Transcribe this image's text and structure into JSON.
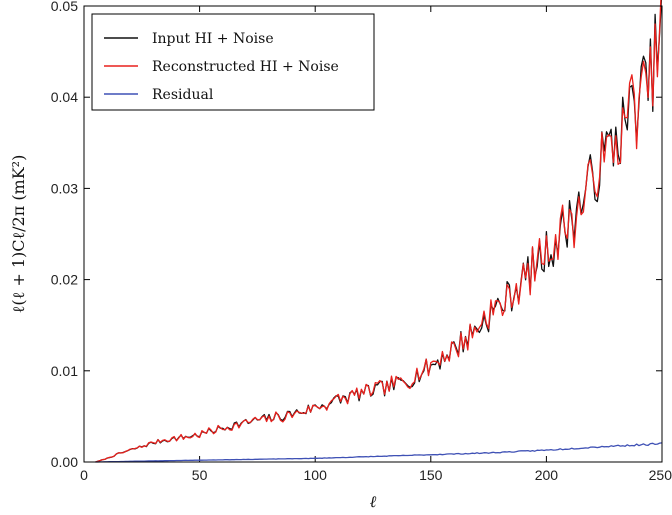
{
  "chart_data": {
    "type": "line",
    "xlabel": "ℓ",
    "ylabel": "ℓ(ℓ + 1)Cℓ/2π (mK²)",
    "xlim": [
      0,
      250
    ],
    "ylim": [
      0,
      0.05
    ],
    "xticks": [
      "0",
      "50",
      "100",
      "150",
      "200",
      "250"
    ],
    "yticks": [
      "0.00",
      "0.01",
      "0.02",
      "0.03",
      "0.04",
      "0.05"
    ],
    "legend_position": "top-left",
    "series": [
      {
        "name": "Input HI + Noise",
        "color": "#111111",
        "x": [
          5,
          10,
          15,
          20,
          25,
          30,
          35,
          40,
          45,
          50,
          55,
          60,
          65,
          70,
          75,
          80,
          85,
          90,
          95,
          100,
          105,
          110,
          115,
          120,
          125,
          130,
          135,
          140,
          145,
          150,
          155,
          160,
          165,
          170,
          175,
          180,
          185,
          190,
          195,
          200,
          205,
          210,
          215,
          220,
          225,
          230,
          235,
          240,
          245,
          250
        ],
        "values": [
          0.0,
          0.0004,
          0.0009,
          0.0013,
          0.0017,
          0.0021,
          0.0024,
          0.0026,
          0.0028,
          0.003,
          0.0034,
          0.0037,
          0.0041,
          0.0043,
          0.0046,
          0.0048,
          0.005,
          0.0053,
          0.0056,
          0.006,
          0.0064,
          0.0068,
          0.0072,
          0.0075,
          0.0078,
          0.0081,
          0.0085,
          0.009,
          0.0097,
          0.0105,
          0.0115,
          0.0125,
          0.0135,
          0.0147,
          0.016,
          0.0172,
          0.0185,
          0.02,
          0.0215,
          0.023,
          0.0245,
          0.0265,
          0.0285,
          0.031,
          0.0335,
          0.0355,
          0.0375,
          0.04,
          0.042,
          0.048
        ]
      },
      {
        "name": "Reconstructed HI + Noise",
        "color": "#e8211d",
        "x": [
          5,
          10,
          15,
          20,
          25,
          30,
          35,
          40,
          45,
          50,
          55,
          60,
          65,
          70,
          75,
          80,
          85,
          90,
          95,
          100,
          105,
          110,
          115,
          120,
          125,
          130,
          135,
          140,
          145,
          150,
          155,
          160,
          165,
          170,
          175,
          180,
          185,
          190,
          195,
          200,
          205,
          210,
          215,
          220,
          225,
          230,
          235,
          240,
          245,
          250
        ],
        "values": [
          0.0,
          0.0004,
          0.0009,
          0.0013,
          0.0017,
          0.0021,
          0.0024,
          0.0026,
          0.0028,
          0.003,
          0.0034,
          0.0037,
          0.0041,
          0.0043,
          0.0046,
          0.0048,
          0.005,
          0.0053,
          0.0056,
          0.006,
          0.0064,
          0.0068,
          0.0072,
          0.0075,
          0.0078,
          0.0081,
          0.0085,
          0.009,
          0.0097,
          0.0105,
          0.0115,
          0.0125,
          0.0135,
          0.0147,
          0.016,
          0.0172,
          0.0185,
          0.02,
          0.0215,
          0.023,
          0.0245,
          0.0265,
          0.0285,
          0.031,
          0.0335,
          0.0355,
          0.0375,
          0.04,
          0.042,
          0.049
        ]
      },
      {
        "name": "Residual",
        "color": "#3f51b5",
        "x": [
          5,
          25,
          50,
          75,
          100,
          125,
          150,
          175,
          200,
          225,
          250
        ],
        "values": [
          0.0,
          0.0001,
          0.0002,
          0.0003,
          0.0004,
          0.0006,
          0.0008,
          0.001,
          0.0013,
          0.0017,
          0.002
        ]
      }
    ]
  }
}
